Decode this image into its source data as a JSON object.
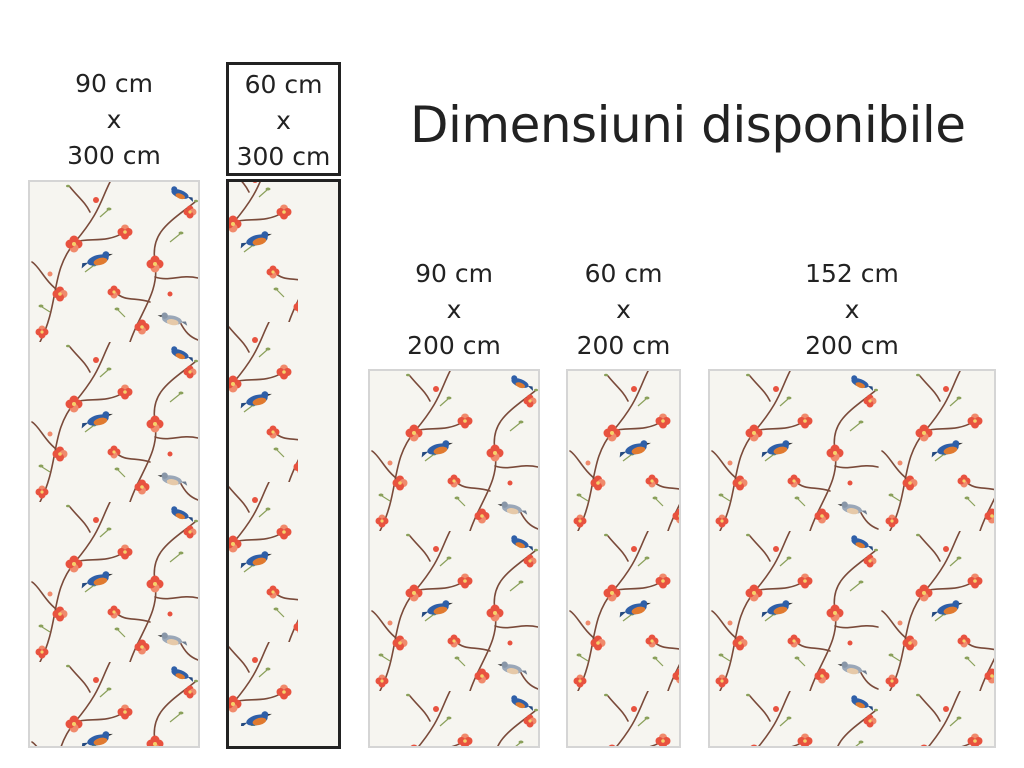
{
  "title": "Dimensiuni disponibile",
  "options": [
    {
      "width": "90 cm",
      "sep": "x",
      "height": "300 cm",
      "selected": false
    },
    {
      "width": "60 cm",
      "sep": "x",
      "height": "300 cm",
      "selected": true
    },
    {
      "width": "90 cm",
      "sep": "x",
      "height": "200 cm",
      "selected": false
    },
    {
      "width": "60 cm",
      "sep": "x",
      "height": "200 cm",
      "selected": false
    },
    {
      "width": "152 cm",
      "sep": "x",
      "height": "200 cm",
      "selected": false
    }
  ],
  "pattern": {
    "name": "blossom-bird-wallpaper-pattern",
    "background": "#f6f5f0",
    "branch_color": "#7a4a3a",
    "flower_color": "#e8523f",
    "flower_light": "#f08a6c",
    "bud_color": "#8aa05a",
    "bird_blue": "#2f5fa8",
    "bird_orange": "#e07a30",
    "bird_grey": "#9aa7b8"
  },
  "selection_border_color": "#222222"
}
